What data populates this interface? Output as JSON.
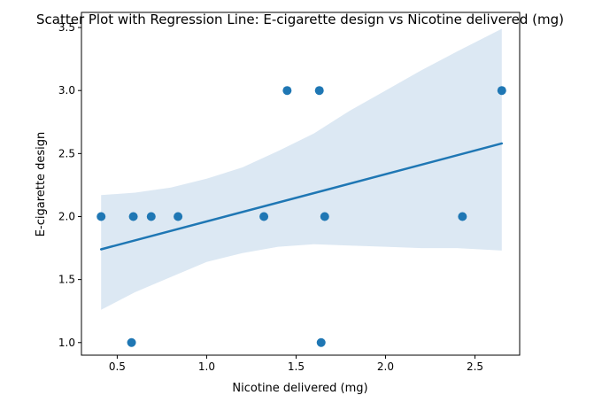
{
  "chart_data": {
    "type": "scatter",
    "title": "Scatter Plot with Regression Line: E-cigarette design vs Nicotine delivered (mg)",
    "xlabel": "Nicotine delivered (mg)",
    "ylabel": "E-cigarette design",
    "xlim": [
      0.3,
      2.75
    ],
    "ylim": [
      0.9,
      3.62
    ],
    "xticks": [
      0.5,
      1.0,
      1.5,
      2.0,
      2.5
    ],
    "xtick_labels": [
      "0.5",
      "1.0",
      "1.5",
      "2.0",
      "2.5"
    ],
    "yticks": [
      1.0,
      1.5,
      2.0,
      2.5,
      3.0,
      3.5
    ],
    "ytick_labels": [
      "1.0",
      "1.5",
      "2.0",
      "2.5",
      "3.0",
      "3.5"
    ],
    "grid": false,
    "points": [
      {
        "x": 0.41,
        "y": 2.0
      },
      {
        "x": 0.58,
        "y": 1.0
      },
      {
        "x": 0.59,
        "y": 2.0
      },
      {
        "x": 0.69,
        "y": 2.0
      },
      {
        "x": 0.84,
        "y": 2.0
      },
      {
        "x": 1.32,
        "y": 2.0
      },
      {
        "x": 1.45,
        "y": 3.0
      },
      {
        "x": 1.63,
        "y": 3.0
      },
      {
        "x": 1.64,
        "y": 1.0
      },
      {
        "x": 1.66,
        "y": 2.0
      },
      {
        "x": 2.43,
        "y": 2.0
      },
      {
        "x": 2.65,
        "y": 3.0
      }
    ],
    "regression": {
      "x": [
        0.41,
        2.65
      ],
      "y": [
        1.74,
        2.58
      ]
    },
    "confidence_band": {
      "x": [
        0.41,
        0.6,
        0.8,
        1.0,
        1.2,
        1.4,
        1.6,
        1.8,
        2.0,
        2.2,
        2.4,
        2.65
      ],
      "upper": [
        2.17,
        2.19,
        2.23,
        2.3,
        2.39,
        2.52,
        2.66,
        2.84,
        3.0,
        3.16,
        3.31,
        3.49
      ],
      "lower": [
        1.26,
        1.4,
        1.52,
        1.64,
        1.71,
        1.76,
        1.78,
        1.77,
        1.76,
        1.75,
        1.75,
        1.73
      ]
    },
    "colors": {
      "points": "#1f77b4",
      "line": "#1f77b4",
      "band": "#dce8f3"
    }
  }
}
